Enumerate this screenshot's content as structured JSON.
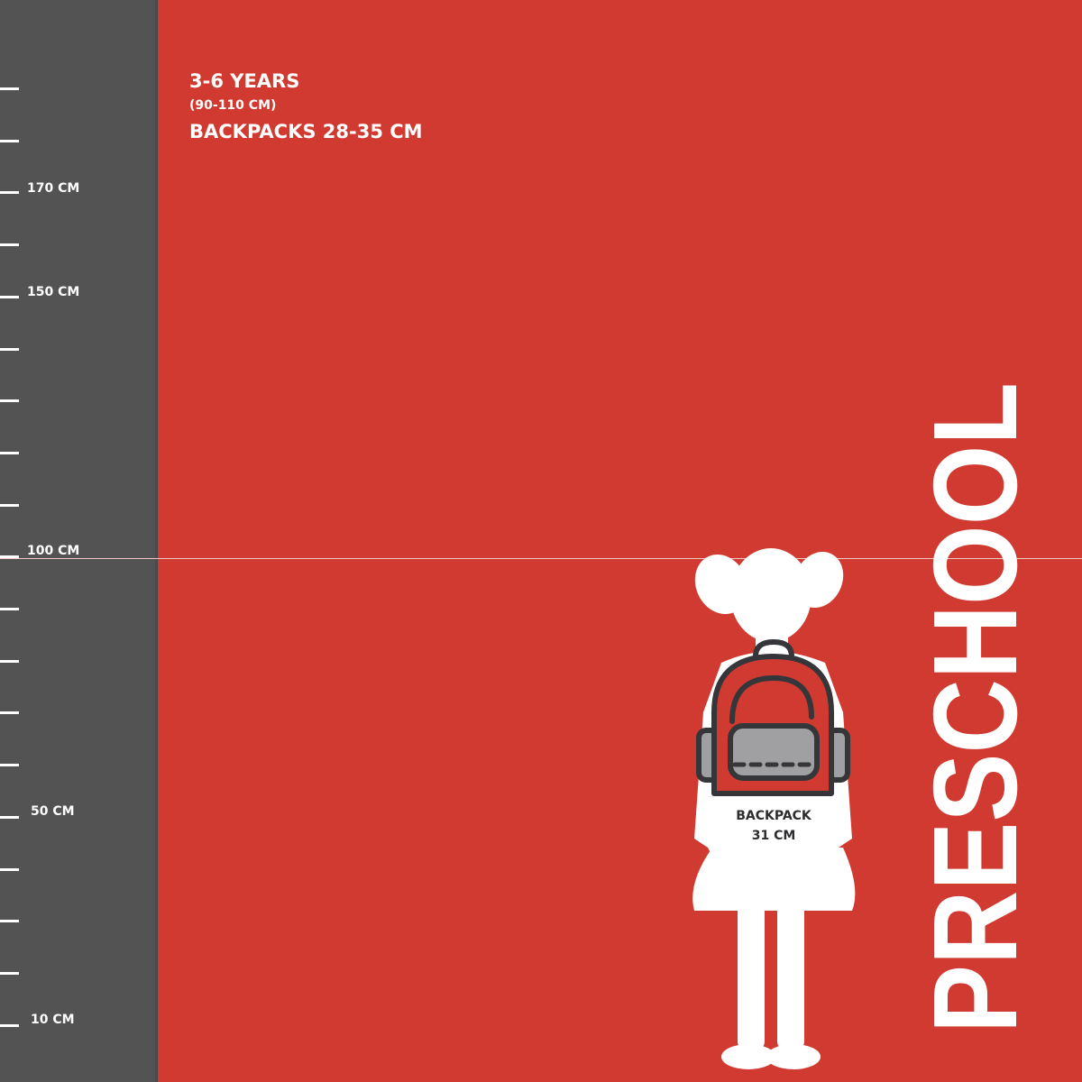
{
  "colors": {
    "background": "#d13a30",
    "ruler": "#545354",
    "backpack_outline": "#35363a",
    "backpack_pocket": "#a0a0a2"
  },
  "ruler": {
    "labels": [
      {
        "text": "170 CM",
        "value": 170
      },
      {
        "text": "150 CM",
        "value": 150
      },
      {
        "text": "100 CM",
        "value": 100
      },
      {
        "text": "50 CM",
        "value": 50
      },
      {
        "text": "10 CM",
        "value": 10
      }
    ]
  },
  "header": {
    "age": "3-6 YEARS",
    "height_range": "(90-110 CM)",
    "backpack_range": "BACKPACKS 28-35 CM"
  },
  "figure": {
    "icon": "girl-silhouette-with-backpack",
    "backpack_label": "BACKPACK",
    "backpack_size": "31 CM"
  },
  "category_title": "PRESCHOOL"
}
